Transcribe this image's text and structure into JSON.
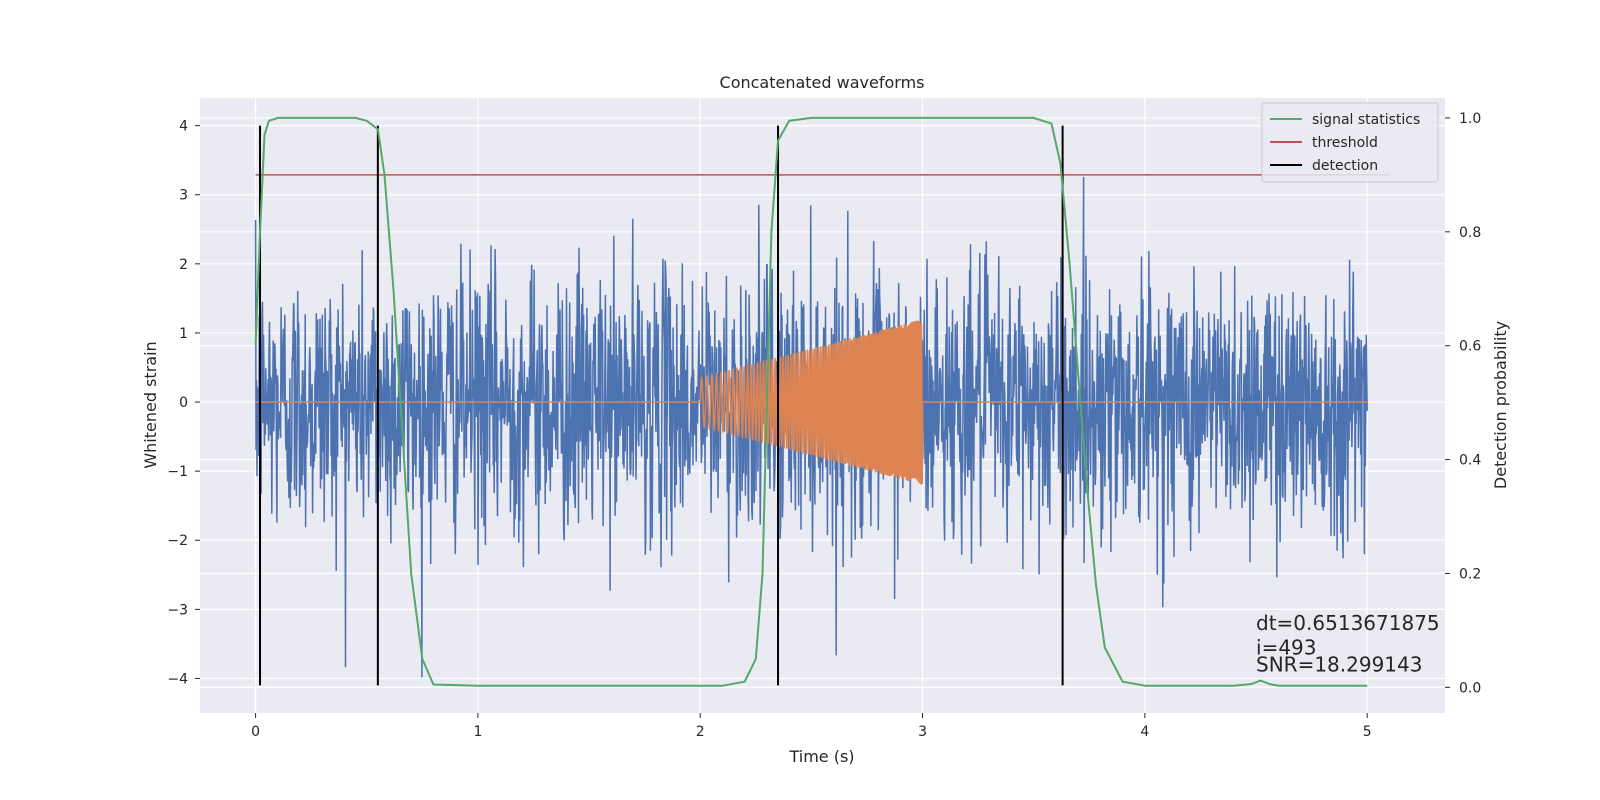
{
  "chart_data": {
    "type": "line",
    "title": "Concatenated waveforms",
    "xlabel": "Time (s)",
    "ylabel": "Whitened strain",
    "ylabel_right": "Detection probability",
    "xlim": [
      -0.25,
      5.35
    ],
    "ylim": [
      -4.5,
      4.4
    ],
    "ylim_right": [
      -0.045,
      1.035
    ],
    "x_ticks": [
      0,
      1,
      2,
      3,
      4,
      5
    ],
    "x_tick_labels": [
      "0",
      "1",
      "2",
      "3",
      "4",
      "5"
    ],
    "y_ticks": [
      -4,
      -3,
      -2,
      -1,
      0,
      1,
      2,
      3,
      4
    ],
    "y_tick_labels": [
      "−4",
      "−3",
      "−2",
      "−1",
      "0",
      "1",
      "2",
      "3",
      "4"
    ],
    "y2_ticks": [
      0.0,
      0.2,
      0.4,
      0.6,
      0.8,
      1.0
    ],
    "y2_tick_labels": [
      "0.0",
      "0.2",
      "0.4",
      "0.6",
      "0.8",
      "1.0"
    ],
    "grid": true,
    "legend_position": "top-right",
    "colors": {
      "background": "#eaeaf2",
      "grid": "#ffffff",
      "strain": "#4c72b0",
      "injection": "#dd8452",
      "statistic": "#55a868",
      "threshold": "#c44e52",
      "detection": "#000000"
    },
    "series": [
      {
        "name": "",
        "axis": "left",
        "kind": "noise",
        "x_range": [
          0,
          5
        ],
        "amplitude_std": 0.95,
        "y_range": [
          -4.1,
          4.0
        ],
        "color": "#4c72b0"
      },
      {
        "name": "",
        "axis": "left",
        "kind": "chirp",
        "x": [
          0,
          2,
          2.0,
          2.5,
          3.0,
          3.0,
          5
        ],
        "amplitude": [
          0,
          0,
          0.35,
          0.75,
          1.2,
          0,
          0
        ],
        "color": "#dd8452"
      },
      {
        "name": "signal statistics",
        "axis": "right",
        "x": [
          0.0,
          0.02,
          0.04,
          0.06,
          0.1,
          0.2,
          0.45,
          0.5,
          0.55,
          0.58,
          0.62,
          0.66,
          0.7,
          0.75,
          0.8,
          1.0,
          1.5,
          2.0,
          2.1,
          2.2,
          2.25,
          2.28,
          2.3,
          2.32,
          2.35,
          2.4,
          2.5,
          3.5,
          3.58,
          3.62,
          3.66,
          3.7,
          3.74,
          3.78,
          3.82,
          3.9,
          4.0,
          4.4,
          4.48,
          4.52,
          4.56,
          4.6,
          5.0
        ],
        "y": [
          0.6,
          0.8,
          0.97,
          0.995,
          1.0,
          1.0,
          1.0,
          0.995,
          0.98,
          0.9,
          0.7,
          0.45,
          0.2,
          0.05,
          0.005,
          0.003,
          0.003,
          0.003,
          0.003,
          0.01,
          0.05,
          0.2,
          0.5,
          0.8,
          0.96,
          0.995,
          1.0,
          1.0,
          0.99,
          0.92,
          0.75,
          0.55,
          0.35,
          0.18,
          0.07,
          0.01,
          0.003,
          0.003,
          0.006,
          0.012,
          0.006,
          0.003,
          0.003
        ],
        "color": "#55a868"
      },
      {
        "name": "threshold",
        "axis": "right",
        "x": [
          0,
          5.1
        ],
        "y": [
          0.9,
          0.9
        ],
        "color": "#c44e52"
      },
      {
        "name": "detection",
        "axis": "left",
        "kind": "vlines",
        "x": [
          0.02,
          0.55,
          2.35,
          3.63
        ],
        "y_range": [
          -4.1,
          4.0
        ],
        "color": "#000000"
      }
    ],
    "annotations": [
      {
        "text": "dt=0.6513671875",
        "x": 4.5,
        "y": -3.3
      },
      {
        "text": " i=493",
        "x": 4.5,
        "y": -3.65
      },
      {
        "text": "SNR=18.299143",
        "x": 4.5,
        "y": -3.9
      }
    ]
  }
}
